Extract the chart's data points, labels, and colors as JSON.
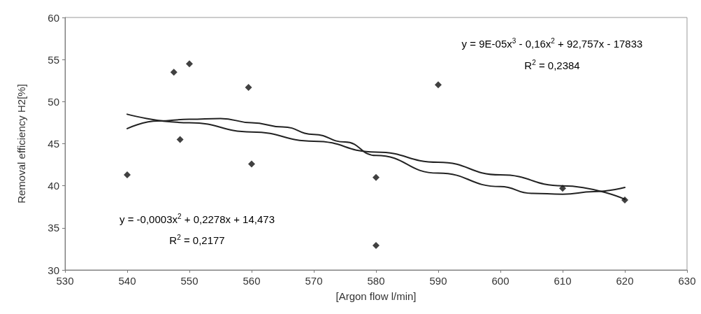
{
  "chart_data": {
    "type": "scatter",
    "xlabel": "[Argon flow l/min]",
    "ylabel": "Removal efficiency H2[%]",
    "xlim": [
      530,
      630
    ],
    "xticks": [
      530,
      540,
      550,
      560,
      570,
      580,
      590,
      600,
      610,
      620,
      630
    ],
    "ylim": [
      30,
      60
    ],
    "yticks": [
      30,
      35,
      40,
      45,
      50,
      55,
      60
    ],
    "grid": false,
    "series": [
      {
        "color": "#111111",
        "marker": "diamond",
        "x": [
          540,
          547.5,
          548.5,
          550,
          559.5,
          560,
          580,
          580,
          590,
          610,
          620
        ],
        "values": [
          41.3,
          53.5,
          45.5,
          54.5,
          51.7,
          42.6,
          41.0,
          32.9,
          52.0,
          39.7,
          38.3
        ]
      },
      {
        "type": "line",
        "color": "#222222",
        "marker": "none",
        "line_style": "solid",
        "x": [
          540,
          550,
          560,
          570,
          580,
          590,
          600,
          610,
          620
        ],
        "values": [
          48.5,
          47.5,
          46.4,
          45.3,
          44.0,
          42.8,
          41.3,
          40.0,
          38.4
        ]
      },
      {
        "type": "line",
        "color": "#222222",
        "marker": "none",
        "line_style": "solid",
        "x": [
          540,
          545,
          550,
          555,
          560,
          565,
          570,
          575,
          580,
          590,
          600,
          605,
          610,
          615,
          620
        ],
        "values": [
          46.8,
          47.7,
          47.9,
          48.0,
          47.5,
          47.0,
          46.1,
          45.2,
          43.6,
          41.5,
          39.9,
          39.1,
          39.0,
          39.3,
          39.8
        ]
      }
    ],
    "annotations": [
      "y = 9E-05x$^{3}$ - 0,16x$^{2}$ + 92,757x - 17833",
      "R$^{2}$ = 0,2384",
      "y = -0,0003x$^{2}$ + 0,2278x + 14,473",
      "R$^{2}$ = 0,2177"
    ]
  }
}
